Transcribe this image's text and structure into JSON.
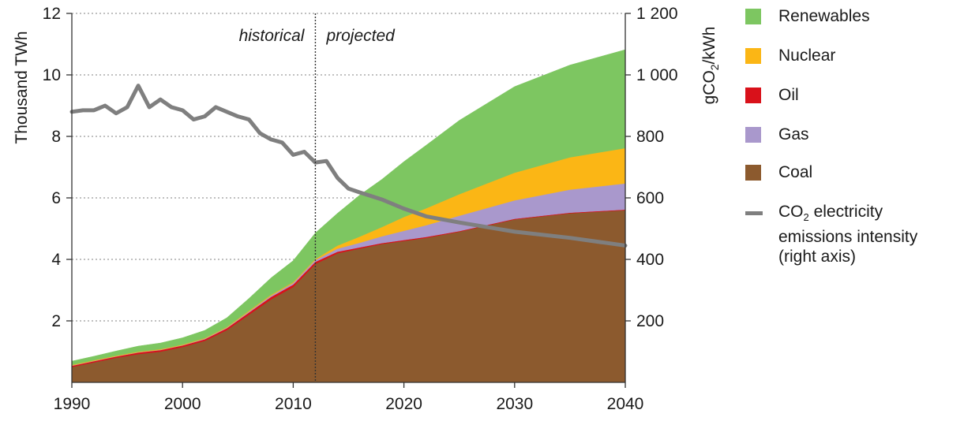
{
  "chart_data": {
    "type": "area",
    "stacked": true,
    "x_range": [
      1990,
      2040
    ],
    "x_ticks": [
      "1990",
      "2000",
      "2010",
      "2020",
      "2030",
      "2040"
    ],
    "ylabel": "Thousand TWh",
    "ylim": [
      0,
      12
    ],
    "y_ticks": [
      "2",
      "4",
      "6",
      "8",
      "10",
      "12"
    ],
    "y2label_prefix": "gCO",
    "y2label_sub": "2",
    "y2label_suffix": "/kWh",
    "y2lim": [
      0,
      1200
    ],
    "y2_ticks": [
      "200",
      "400",
      "600",
      "800",
      "1 000",
      "1 200"
    ],
    "divider_year": 2012,
    "period_labels": {
      "historical": "historical",
      "projected": "projected"
    },
    "grid": "horizontal dotted",
    "legend_position": "right",
    "colors": {
      "coal": "#8c5a2e",
      "gas": "#a998cc",
      "oil": "#d9111a",
      "nuclear": "#fbb615",
      "renewables": "#7dc661",
      "intensity": "#7f7f7f"
    },
    "years": [
      1990,
      1992,
      1994,
      1996,
      1998,
      2000,
      2002,
      2004,
      2006,
      2008,
      2010,
      2012,
      2014,
      2016,
      2018,
      2020,
      2022,
      2025,
      2030,
      2035,
      2040
    ],
    "series": [
      {
        "name": "Coal",
        "key": "coal",
        "values": [
          0.5,
          0.65,
          0.8,
          0.92,
          1.0,
          1.15,
          1.35,
          1.7,
          2.2,
          2.7,
          3.1,
          3.85,
          4.2,
          4.35,
          4.5,
          4.6,
          4.7,
          4.9,
          5.3,
          5.5,
          5.6
        ]
      },
      {
        "name": "Oil",
        "key": "oil",
        "values": [
          0.04,
          0.04,
          0.04,
          0.05,
          0.05,
          0.05,
          0.05,
          0.06,
          0.07,
          0.08,
          0.08,
          0.07,
          0.05,
          0.04,
          0.03,
          0.03,
          0.03,
          0.02,
          0.02,
          0.02,
          0.02
        ]
      },
      {
        "name": "Gas",
        "key": "gas",
        "values": [
          0.01,
          0.01,
          0.01,
          0.01,
          0.01,
          0.01,
          0.02,
          0.02,
          0.03,
          0.04,
          0.05,
          0.06,
          0.1,
          0.15,
          0.22,
          0.3,
          0.38,
          0.5,
          0.6,
          0.75,
          0.85
        ]
      },
      {
        "name": "Nuclear",
        "key": "nuclear",
        "values": [
          0.02,
          0.02,
          0.02,
          0.02,
          0.02,
          0.02,
          0.02,
          0.02,
          0.03,
          0.03,
          0.03,
          0.03,
          0.1,
          0.2,
          0.3,
          0.45,
          0.55,
          0.7,
          0.9,
          1.05,
          1.15
        ]
      },
      {
        "name": "Renewables",
        "key": "renewables",
        "values": [
          0.12,
          0.13,
          0.15,
          0.18,
          0.2,
          0.22,
          0.25,
          0.3,
          0.4,
          0.55,
          0.7,
          0.85,
          1.05,
          1.35,
          1.55,
          1.8,
          2.05,
          2.4,
          2.8,
          3.0,
          3.2
        ]
      }
    ],
    "intensity_line": {
      "name_prefix": "CO",
      "name_sub": "2",
      "name_suffix": " electricity emissions intensity (right axis)",
      "axis": "right",
      "points": [
        [
          1990,
          880
        ],
        [
          1991,
          885
        ],
        [
          1992,
          885
        ],
        [
          1993,
          900
        ],
        [
          1994,
          875
        ],
        [
          1995,
          895
        ],
        [
          1996,
          965
        ],
        [
          1997,
          895
        ],
        [
          1998,
          920
        ],
        [
          1999,
          895
        ],
        [
          2000,
          885
        ],
        [
          2001,
          855
        ],
        [
          2002,
          865
        ],
        [
          2003,
          895
        ],
        [
          2004,
          880
        ],
        [
          2005,
          865
        ],
        [
          2006,
          855
        ],
        [
          2007,
          810
        ],
        [
          2008,
          790
        ],
        [
          2009,
          780
        ],
        [
          2010,
          740
        ],
        [
          2011,
          750
        ],
        [
          2012,
          715
        ],
        [
          2013,
          720
        ],
        [
          2014,
          665
        ],
        [
          2015,
          630
        ],
        [
          2016,
          618
        ],
        [
          2018,
          595
        ],
        [
          2020,
          565
        ],
        [
          2022,
          540
        ],
        [
          2025,
          520
        ],
        [
          2030,
          490
        ],
        [
          2035,
          470
        ],
        [
          2040,
          445
        ]
      ]
    }
  }
}
